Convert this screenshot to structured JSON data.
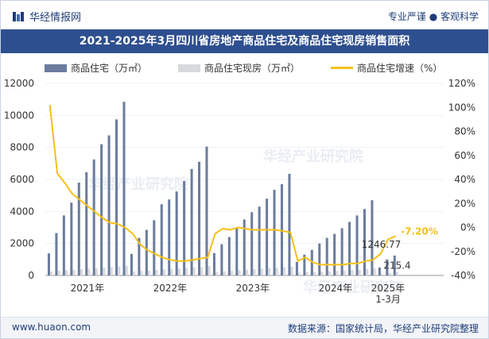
{
  "header": {
    "site_name": "华经情报网",
    "tagline": "专业严谨 ● 客观科学"
  },
  "title": "2021-2025年3月四川省房地产商品住宅及商品住宅现房销售面积",
  "footer": {
    "website": "www.huaon.com",
    "source": "数据来源：国家统计局，华经产业研究院整理"
  },
  "watermark": "华经产业研究院",
  "colors": {
    "bar_primary": "#6b7c9e",
    "bar_secondary": "#d7d9de",
    "line": "#f5c017",
    "title_bg": "#2e4f8f"
  },
  "chart_data": {
    "type": "bar",
    "series": [
      {
        "name": "商品住宅（万㎡）",
        "kind": "bar",
        "axis": "left",
        "values": [
          1380,
          2650,
          3750,
          4550,
          5800,
          6450,
          7250,
          8200,
          8750,
          9750,
          10850,
          1350,
          2350,
          2850,
          3450,
          4450,
          4750,
          5250,
          5900,
          6650,
          7100,
          8050,
          1400,
          1950,
          2400,
          2950,
          3500,
          3950,
          4300,
          4800,
          5350,
          5700,
          6350,
          850,
          1300,
          1600,
          2000,
          2350,
          2600,
          2950,
          3350,
          3750,
          4150,
          4700,
          500,
          1000,
          1246.77
        ]
      },
      {
        "name": "商品住宅现房（万㎡）",
        "kind": "bar",
        "axis": "left",
        "values": [
          250,
          300,
          320,
          360,
          400,
          430,
          460,
          500,
          530,
          560,
          600,
          250,
          280,
          300,
          340,
          380,
          400,
          430,
          460,
          500,
          530,
          580,
          220,
          260,
          300,
          330,
          360,
          390,
          420,
          450,
          480,
          510,
          540,
          180,
          200,
          220,
          240,
          260,
          280,
          300,
          330,
          360,
          400,
          450,
          100,
          160,
          215.4
        ]
      },
      {
        "name": "商品住宅增速（%）",
        "kind": "line",
        "axis": "right",
        "values": [
          102,
          45,
          37,
          28,
          23,
          18,
          13,
          8,
          4,
          3,
          0,
          -5,
          -14,
          -19,
          -22,
          -25,
          -27,
          -28,
          -28,
          -27,
          -26,
          -25,
          -5,
          -1,
          -2,
          0,
          -1,
          -2,
          -2,
          -2,
          -2,
          -3,
          -4,
          -28,
          -25,
          -29,
          -31,
          -31,
          -31,
          -31,
          -30,
          -30,
          -28,
          -27,
          -22,
          -10,
          -7.2
        ]
      }
    ],
    "x_labels": [
      "2021年",
      "2022年",
      "2023年",
      "2024年",
      "2025年\n1-3月"
    ],
    "left_axis": {
      "ticks": [
        "0",
        "2000",
        "4000",
        "6000",
        "8000",
        "10000",
        "12000"
      ],
      "min": 0,
      "max": 12000
    },
    "right_axis": {
      "ticks": [
        "-40%",
        "-20%",
        "0%",
        "20%",
        "40%",
        "60%",
        "80%",
        "100%",
        "120%"
      ],
      "min": -40,
      "max": 120
    },
    "annotations": {
      "bar_last": "1246.77",
      "bar2_last": "215.4",
      "line_last": "-7.20%"
    },
    "legend_position": "top"
  }
}
